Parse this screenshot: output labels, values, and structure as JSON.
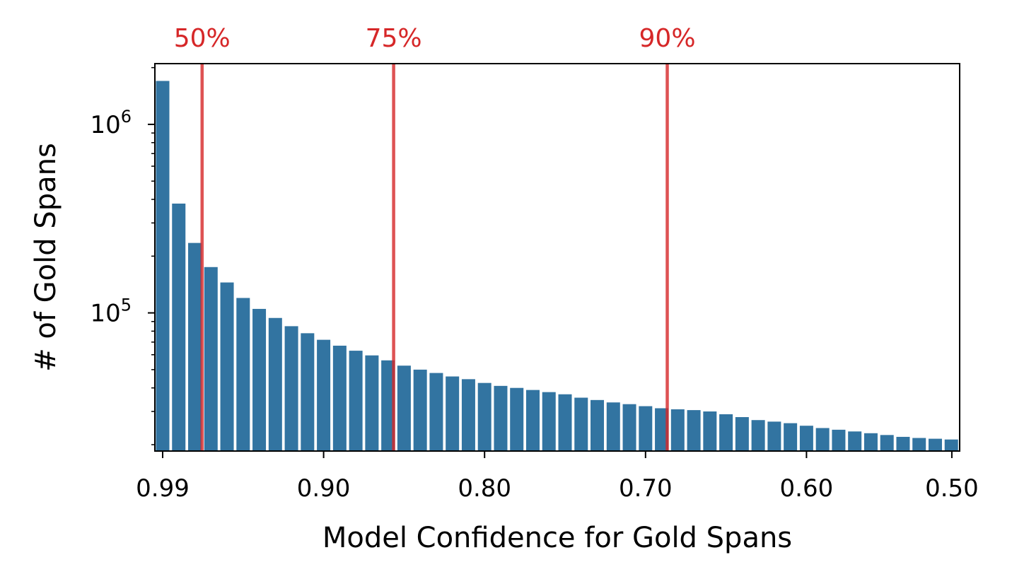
{
  "chart_data": {
    "type": "bar",
    "xlabel": "Model Confidence for Gold Spans",
    "ylabel": "# of Gold Spans",
    "y_scale": "log",
    "ylim": [
      18500,
      2100000
    ],
    "grid": false,
    "legend": "none",
    "bar_color": "#3274a1",
    "threshold_color": "#d62728",
    "x_tick_labels": [
      "0.99",
      "0.90",
      "0.80",
      "0.70",
      "0.60",
      "0.50"
    ],
    "y_tick_labels": [
      {
        "base": "10",
        "exp": "6",
        "value": 1000000
      },
      {
        "base": "10",
        "exp": "5",
        "value": 100000
      }
    ],
    "categories": [
      "0.99",
      "0.98",
      "0.97",
      "0.96",
      "0.95",
      "0.94",
      "0.93",
      "0.92",
      "0.91",
      "0.90",
      "0.89",
      "0.88",
      "0.87",
      "0.86",
      "0.85",
      "0.84",
      "0.83",
      "0.82",
      "0.81",
      "0.80",
      "0.79",
      "0.78",
      "0.77",
      "0.76",
      "0.75",
      "0.74",
      "0.73",
      "0.72",
      "0.71",
      "0.70",
      "0.69",
      "0.68",
      "0.67",
      "0.66",
      "0.65",
      "0.64",
      "0.63",
      "0.62",
      "0.61",
      "0.60",
      "0.59",
      "0.58",
      "0.57",
      "0.56",
      "0.55",
      "0.54",
      "0.53",
      "0.52",
      "0.51",
      "0.50"
    ],
    "values": [
      1700000,
      380000,
      235000,
      175000,
      145000,
      120000,
      105000,
      94000,
      85000,
      78000,
      72000,
      67000,
      63000,
      59500,
      56000,
      52500,
      50000,
      48000,
      46000,
      44500,
      42500,
      41000,
      40000,
      39000,
      38000,
      37000,
      35500,
      34500,
      33500,
      32800,
      32000,
      31200,
      30800,
      30500,
      30000,
      29000,
      28000,
      27000,
      26500,
      26000,
      25200,
      24500,
      24000,
      23500,
      23000,
      22500,
      22000,
      21700,
      21500,
      21300
    ],
    "thresholds": [
      {
        "label": "50%",
        "category_position": 2.45
      },
      {
        "label": "75%",
        "category_position": 14.35
      },
      {
        "label": "90%",
        "category_position": 31.35
      }
    ]
  }
}
